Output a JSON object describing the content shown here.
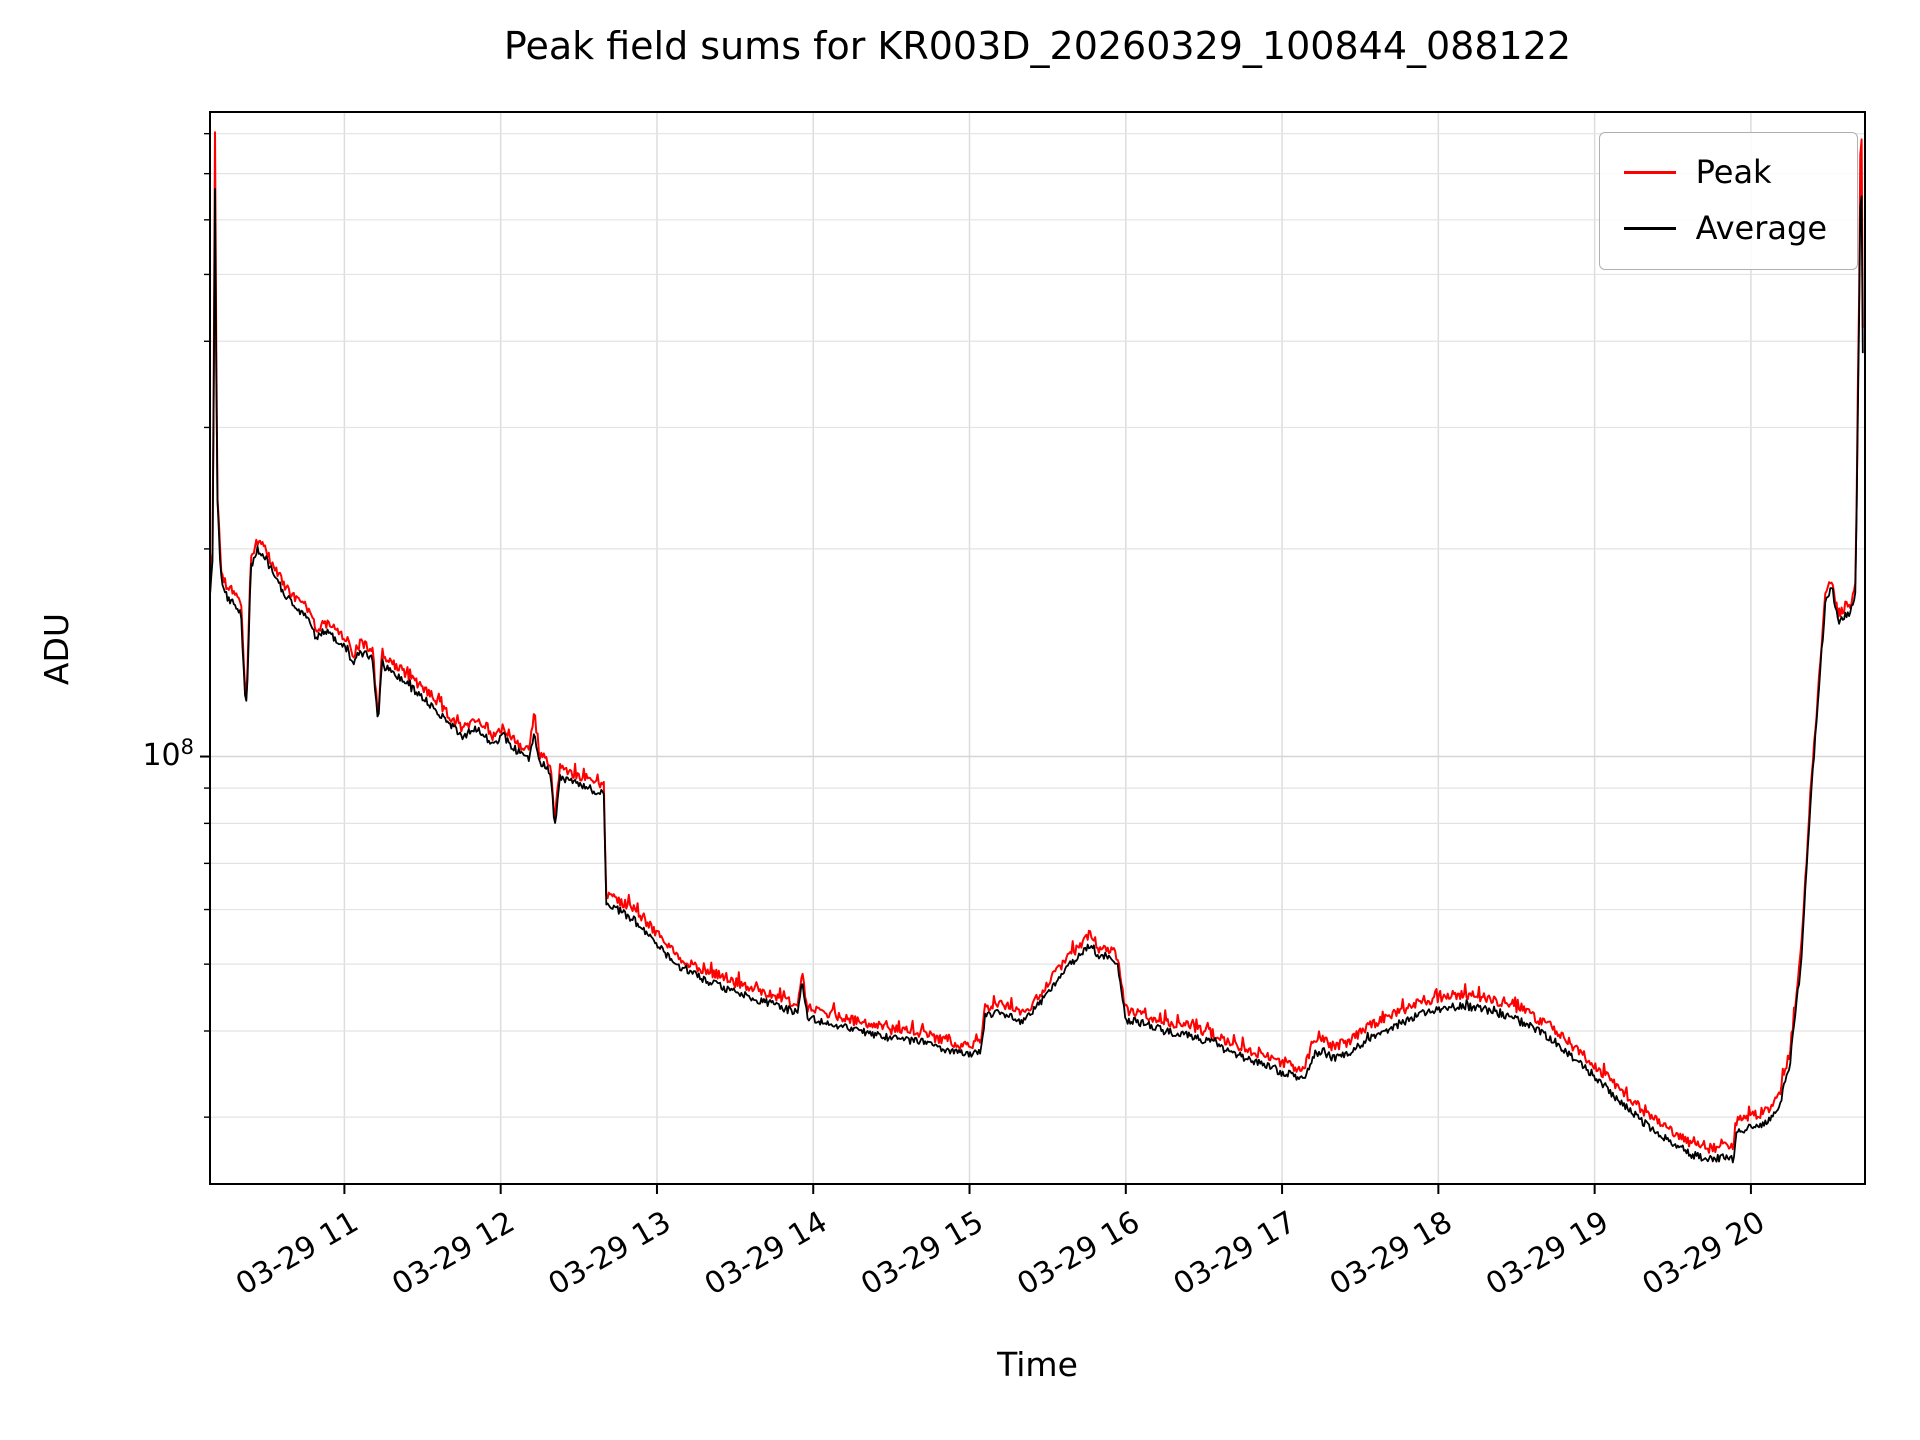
{
  "chart_data": {
    "type": "line",
    "title": "Peak field sums for KR003D_20260329_100844_088122",
    "xlabel": "Time",
    "ylabel": "ADU",
    "yscale": "log",
    "grid": true,
    "legend_position": "upper right",
    "y_tick": {
      "base": "10",
      "exp": "8",
      "value": 100000000.0
    },
    "y_range": [
      24000000.0,
      860000000.0
    ],
    "x_range_hours": [
      10.14,
      20.73
    ],
    "x_ticks": [
      {
        "hour": 11,
        "label": "03-29 11"
      },
      {
        "hour": 12,
        "label": "03-29 12"
      },
      {
        "hour": 13,
        "label": "03-29 13"
      },
      {
        "hour": 14,
        "label": "03-29 14"
      },
      {
        "hour": 15,
        "label": "03-29 15"
      },
      {
        "hour": 16,
        "label": "03-29 16"
      },
      {
        "hour": 17,
        "label": "03-29 17"
      },
      {
        "hour": 18,
        "label": "03-29 18"
      },
      {
        "hour": 19,
        "label": "03-29 19"
      },
      {
        "hour": 20,
        "label": "03-29 20"
      }
    ],
    "legend": [
      {
        "label": "Peak",
        "color": "#ff0000"
      },
      {
        "label": "Average",
        "color": "#000000"
      }
    ],
    "series": [
      {
        "name": "Peak",
        "color": "#ff0000",
        "unit": "ADU",
        "keypoints": [
          [
            10.14,
            175000000.0
          ],
          [
            10.16,
            206000000.0
          ],
          [
            10.17,
            980000000.0
          ],
          [
            10.185,
            247000000.0
          ],
          [
            10.21,
            187000000.0
          ],
          [
            10.25,
            175000000.0
          ],
          [
            10.3,
            171000000.0
          ],
          [
            10.34,
            165000000.0
          ],
          [
            10.36,
            130000000.0
          ],
          [
            10.375,
            122000000.0
          ],
          [
            10.4,
            194000000.0
          ],
          [
            10.44,
            206000000.0
          ],
          [
            10.5,
            199000000.0
          ],
          [
            10.56,
            186000000.0
          ],
          [
            10.62,
            177000000.0
          ],
          [
            10.7,
            169000000.0
          ],
          [
            10.78,
            163000000.0
          ],
          [
            10.82,
            152000000.0
          ],
          [
            10.87,
            157000000.0
          ],
          [
            10.95,
            152000000.0
          ],
          [
            11.02,
            147000000.0
          ],
          [
            11.05,
            140000000.0
          ],
          [
            11.1,
            146000000.0
          ],
          [
            11.18,
            143000000.0
          ],
          [
            11.215,
            115000000.0
          ],
          [
            11.24,
            140000000.0
          ],
          [
            11.35,
            134000000.0
          ],
          [
            11.5,
            126000000.0
          ],
          [
            11.65,
            116000000.0
          ],
          [
            11.75,
            110000000.0
          ],
          [
            11.85,
            113000000.0
          ],
          [
            11.95,
            107000000.0
          ],
          [
            12.02,
            110000000.0
          ],
          [
            12.1,
            105000000.0
          ],
          [
            12.18,
            102000000.0
          ],
          [
            12.215,
            115000000.0
          ],
          [
            12.25,
            101000000.0
          ],
          [
            12.32,
            98000000.0
          ],
          [
            12.345,
            81000000.0
          ],
          [
            12.38,
            96000000.0
          ],
          [
            12.5,
            94000000.0
          ],
          [
            12.62,
            92000000.0
          ],
          [
            12.66,
            91000000.0
          ],
          [
            12.675,
            63000000.0
          ],
          [
            12.75,
            62000000.0
          ],
          [
            12.85,
            60000000.0
          ],
          [
            12.95,
            57000000.0
          ],
          [
            13.05,
            53500000.0
          ],
          [
            13.15,
            51000000.0
          ],
          [
            13.3,
            49000000.0
          ],
          [
            13.5,
            47000000.0
          ],
          [
            13.7,
            45300000.0
          ],
          [
            13.9,
            43800000.0
          ],
          [
            13.93,
            49000000.0
          ],
          [
            13.96,
            43300000.0
          ],
          [
            14.1,
            42200000.0
          ],
          [
            14.3,
            41200000.0
          ],
          [
            14.5,
            40200000.0
          ],
          [
            14.7,
            39700000.0
          ],
          [
            14.85,
            38600000.0
          ],
          [
            14.97,
            38100000.0
          ],
          [
            15.07,
            38300000.0
          ],
          [
            15.1,
            43300000.0
          ],
          [
            15.18,
            43800000.0
          ],
          [
            15.26,
            43300000.0
          ],
          [
            15.33,
            42200000.0
          ],
          [
            15.42,
            44300000.0
          ],
          [
            15.52,
            47400000.0
          ],
          [
            15.62,
            51000000.0
          ],
          [
            15.72,
            53600000.0
          ],
          [
            15.78,
            55100000.0
          ],
          [
            15.83,
            52500000.0
          ],
          [
            15.88,
            53000000.0
          ],
          [
            15.95,
            51000000.0
          ],
          [
            16.0,
            42700000.0
          ],
          [
            16.12,
            42200000.0
          ],
          [
            16.25,
            41200000.0
          ],
          [
            16.4,
            40700000.0
          ],
          [
            16.55,
            39700000.0
          ],
          [
            16.7,
            38100000.0
          ],
          [
            16.85,
            37100000.0
          ],
          [
            16.97,
            36100000.0
          ],
          [
            17.07,
            35500000.0
          ],
          [
            17.14,
            35000000.0
          ],
          [
            17.2,
            38500000.0
          ],
          [
            17.26,
            39000000.0
          ],
          [
            17.32,
            38000000.0
          ],
          [
            17.42,
            38500000.0
          ],
          [
            17.55,
            40600000.0
          ],
          [
            17.7,
            42100000.0
          ],
          [
            17.85,
            43700000.0
          ],
          [
            18.0,
            44700000.0
          ],
          [
            18.15,
            45200000.0
          ],
          [
            18.3,
            44700000.0
          ],
          [
            18.45,
            43700000.0
          ],
          [
            18.6,
            42100000.0
          ],
          [
            18.75,
            40000000.0
          ],
          [
            18.9,
            37400000.0
          ],
          [
            19.05,
            34800000.0
          ],
          [
            19.2,
            32200000.0
          ],
          [
            19.35,
            30100000.0
          ],
          [
            19.5,
            28500000.0
          ],
          [
            19.62,
            27500000.0
          ],
          [
            19.72,
            27000000.0
          ],
          [
            19.82,
            27200000.0
          ],
          [
            19.89,
            27000000.0
          ],
          [
            19.905,
            29600000.0
          ],
          [
            20.0,
            30100000.0
          ],
          [
            20.1,
            30600000.0
          ],
          [
            20.18,
            32200000.0
          ],
          [
            20.25,
            37400000.0
          ],
          [
            20.32,
            51800000.0
          ],
          [
            20.38,
            87500000.0
          ],
          [
            20.44,
            134000000.0
          ],
          [
            20.48,
            175000000.0
          ],
          [
            20.52,
            180000000.0
          ],
          [
            20.56,
            159000000.0
          ],
          [
            20.6,
            165000000.0
          ],
          [
            20.64,
            167000000.0
          ],
          [
            20.67,
            180000000.0
          ],
          [
            20.69,
            420000000.0
          ],
          [
            20.705,
            980000000.0
          ],
          [
            20.72,
            312000000.0
          ]
        ]
      },
      {
        "name": "Average",
        "color": "#000000",
        "unit": "ADU",
        "keypoints": [
          [
            10.14,
            170000000.0
          ],
          [
            10.16,
            200000000.0
          ],
          [
            10.17,
            780000000.0
          ],
          [
            10.185,
            240000000.0
          ],
          [
            10.21,
            182000000.0
          ],
          [
            10.25,
            170000000.0
          ],
          [
            10.3,
            166000000.0
          ],
          [
            10.34,
            160000000.0
          ],
          [
            10.36,
            126000000.0
          ],
          [
            10.375,
            118000000.0
          ],
          [
            10.4,
            188000000.0
          ],
          [
            10.44,
            200000000.0
          ],
          [
            10.5,
            193000000.0
          ],
          [
            10.56,
            181000000.0
          ],
          [
            10.62,
            172000000.0
          ],
          [
            10.7,
            164000000.0
          ],
          [
            10.78,
            158000000.0
          ],
          [
            10.82,
            148000000.0
          ],
          [
            10.87,
            152000000.0
          ],
          [
            10.95,
            148000000.0
          ],
          [
            11.02,
            143000000.0
          ],
          [
            11.05,
            136000000.0
          ],
          [
            11.1,
            142000000.0
          ],
          [
            11.18,
            139000000.0
          ],
          [
            11.215,
            112000000.0
          ],
          [
            11.24,
            136000000.0
          ],
          [
            11.35,
            130000000.0
          ],
          [
            11.5,
            122000000.0
          ],
          [
            11.65,
            113000000.0
          ],
          [
            11.75,
            107000000.0
          ],
          [
            11.85,
            110000000.0
          ],
          [
            11.95,
            104000000.0
          ],
          [
            12.02,
            107000000.0
          ],
          [
            12.1,
            102000000.0
          ],
          [
            12.18,
            99000000.0
          ],
          [
            12.215,
            108000000.0
          ],
          [
            12.25,
            98000000.0
          ],
          [
            12.32,
            95000000.0
          ],
          [
            12.345,
            79000000.0
          ],
          [
            12.38,
            93000000.0
          ],
          [
            12.5,
            91000000.0
          ],
          [
            12.62,
            89000000.0
          ],
          [
            12.66,
            88000000.0
          ],
          [
            12.675,
            61000000.0
          ],
          [
            12.75,
            60000000.0
          ],
          [
            12.85,
            58000000.0
          ],
          [
            12.95,
            55000000.0
          ],
          [
            13.05,
            52000000.0
          ],
          [
            13.15,
            49500000.0
          ],
          [
            13.3,
            47500000.0
          ],
          [
            13.5,
            45500000.0
          ],
          [
            13.7,
            44000000.0
          ],
          [
            13.9,
            42500000.0
          ],
          [
            13.93,
            47500000.0
          ],
          [
            13.96,
            42000000.0
          ],
          [
            14.1,
            41000000.0
          ],
          [
            14.3,
            40000000.0
          ],
          [
            14.5,
            39000000.0
          ],
          [
            14.7,
            38500000.0
          ],
          [
            14.85,
            37500000.0
          ],
          [
            14.97,
            37000000.0
          ],
          [
            15.07,
            37200000.0
          ],
          [
            15.1,
            42000000.0
          ],
          [
            15.18,
            42500000.0
          ],
          [
            15.26,
            42000000.0
          ],
          [
            15.33,
            41000000.0
          ],
          [
            15.42,
            43000000.0
          ],
          [
            15.52,
            46000000.0
          ],
          [
            15.62,
            49500000.0
          ],
          [
            15.72,
            52000000.0
          ],
          [
            15.78,
            53500000.0
          ],
          [
            15.83,
            51000000.0
          ],
          [
            15.88,
            51500000.0
          ],
          [
            15.95,
            49500000.0
          ],
          [
            16.0,
            41500000.0
          ],
          [
            16.12,
            41000000.0
          ],
          [
            16.25,
            40000000.0
          ],
          [
            16.4,
            39500000.0
          ],
          [
            16.55,
            38500000.0
          ],
          [
            16.7,
            37000000.0
          ],
          [
            16.85,
            36000000.0
          ],
          [
            16.97,
            35000000.0
          ],
          [
            17.07,
            34500000.0
          ],
          [
            17.14,
            34000000.0
          ],
          [
            17.2,
            37000000.0
          ],
          [
            17.26,
            37500000.0
          ],
          [
            17.32,
            36500000.0
          ],
          [
            17.42,
            37000000.0
          ],
          [
            17.55,
            39000000.0
          ],
          [
            17.7,
            40500000.0
          ],
          [
            17.85,
            42000000.0
          ],
          [
            18.0,
            43000000.0
          ],
          [
            18.15,
            43500000.0
          ],
          [
            18.3,
            43000000.0
          ],
          [
            18.45,
            42000000.0
          ],
          [
            18.6,
            40500000.0
          ],
          [
            18.75,
            38500000.0
          ],
          [
            18.9,
            36000000.0
          ],
          [
            19.05,
            33500000.0
          ],
          [
            19.2,
            31000000.0
          ],
          [
            19.35,
            29000000.0
          ],
          [
            19.5,
            27500000.0
          ],
          [
            19.62,
            26500000.0
          ],
          [
            19.72,
            26000000.0
          ],
          [
            19.82,
            26200000.0
          ],
          [
            19.89,
            26000000.0
          ],
          [
            19.905,
            28500000.0
          ],
          [
            20.0,
            29000000.0
          ],
          [
            20.1,
            29500000.0
          ],
          [
            20.18,
            31000000.0
          ],
          [
            20.25,
            36000000.0
          ],
          [
            20.32,
            50000000.0
          ],
          [
            20.38,
            85000000.0
          ],
          [
            20.44,
            130000000.0
          ],
          [
            20.48,
            170000000.0
          ],
          [
            20.52,
            175000000.0
          ],
          [
            20.56,
            155000000.0
          ],
          [
            20.6,
            160000000.0
          ],
          [
            20.64,
            162000000.0
          ],
          [
            20.67,
            175000000.0
          ],
          [
            20.69,
            400000000.0
          ],
          [
            20.705,
            780000000.0
          ],
          [
            20.72,
            300000000.0
          ]
        ]
      }
    ]
  }
}
